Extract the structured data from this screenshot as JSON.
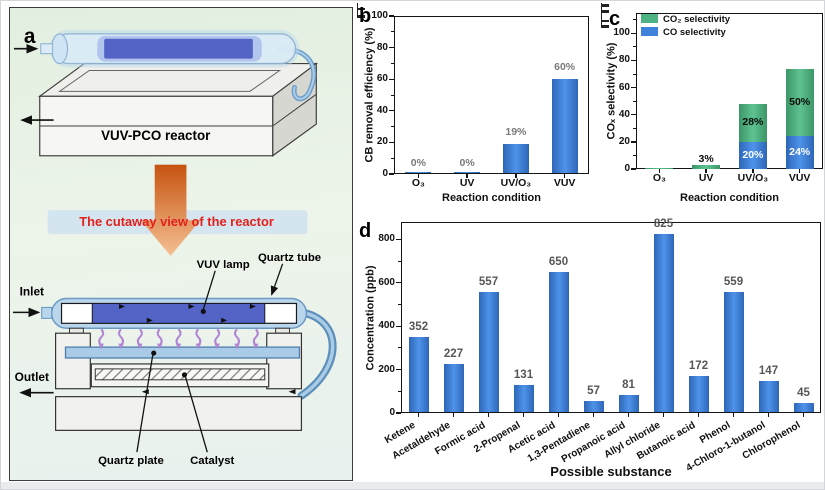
{
  "figure": {
    "panel_a": {
      "label": "a",
      "reactor_title": "VUV-PCO reactor",
      "caption": "The cutaway view of the reactor",
      "inlet": "Inlet",
      "outlet": "Outlet",
      "vuv_lamp": "VUV lamp",
      "quartz_tube": "Quartz tube",
      "quartz_plate": "Quartz plate",
      "catalyst": "Catalyst",
      "caption_color": "#e3211c"
    }
  },
  "chart_data": [
    {
      "id": "b",
      "type": "bar",
      "panel_label": "b",
      "ylabel": "CB removal efficiency (%)",
      "xlabel": "Reaction condition",
      "categories": [
        "O₃",
        "UV",
        "UV/O₃",
        "VUV"
      ],
      "values": [
        0.5,
        0.5,
        19,
        60
      ],
      "errors": [
        0,
        0,
        1.5,
        1.5
      ],
      "bar_labels": [
        "0%",
        "0%",
        "19%",
        "60%"
      ],
      "yticks": [
        0,
        20,
        40,
        60,
        80,
        100
      ],
      "ylim": [
        0,
        100
      ],
      "grid": false,
      "legend_position": "none",
      "bar_color_dark": "#2d66b8",
      "bar_color_light": "#4e93ea",
      "bar_label_color": "#7a7a7a"
    },
    {
      "id": "c",
      "type": "stacked-bar",
      "panel_label": "c",
      "ylabel": "COₓ selectivity (%)",
      "xlabel": "Reaction condition",
      "categories": [
        "O₃",
        "UV",
        "UV/O₃",
        "VUV"
      ],
      "series": [
        {
          "name": "CO selectivity",
          "values": [
            0,
            0,
            20,
            24
          ],
          "labels": [
            "",
            "",
            "20%",
            "24%"
          ],
          "errors": [
            0,
            0,
            1.2,
            0
          ],
          "color_dark": "#2d66b8",
          "color_light": "#4e93ea",
          "label_color": "#ffffff"
        },
        {
          "name": "CO₂ selectivity",
          "values": [
            0.5,
            3,
            28,
            50
          ],
          "labels": [
            "",
            "3%",
            "28%",
            "50%"
          ],
          "errors": [
            0,
            0.5,
            2.5,
            1.2
          ],
          "color_dark": "#3c9668",
          "color_light": "#5fc291",
          "label_color": "#0a0a0a"
        }
      ],
      "legend": [
        {
          "label": "CO₂ selectivity",
          "color": "#4db284"
        },
        {
          "label": "CO selectivity",
          "color": "#3f82dc"
        }
      ],
      "legend_position": "upper-left",
      "yticks": [
        0,
        20,
        40,
        60,
        80,
        100
      ],
      "ylim": [
        0,
        115
      ],
      "grid": false
    },
    {
      "id": "d",
      "type": "bar",
      "panel_label": "d",
      "ylabel": "Concentration (ppb)",
      "xlabel": "Possible substance",
      "categories": [
        "Ketene",
        "Acetaldehyde",
        "Formic acid",
        "2-Propenal",
        "Acetic acid",
        "1,3-Pentadiene",
        "Propanoic acid",
        "Allyl chloride",
        "Butanoic acid",
        "Phenol",
        "4-Chloro-1-butanol",
        "Chlorophenol"
      ],
      "values": [
        352,
        227,
        557,
        131,
        650,
        57,
        81,
        825,
        172,
        559,
        147,
        45
      ],
      "errors": [
        0,
        0,
        0,
        0,
        0,
        0,
        0,
        0,
        0,
        0,
        0,
        0
      ],
      "bar_labels": [
        "352",
        "227",
        "557",
        "131",
        "650",
        "57",
        "81",
        "825",
        "172",
        "559",
        "147",
        "45"
      ],
      "yticks": [
        0,
        200,
        400,
        600,
        800
      ],
      "ylim": [
        0,
        880
      ],
      "grid": false,
      "legend_position": "none",
      "bar_color_dark": "#2d66b8",
      "bar_color_light": "#4e93ea",
      "bar_label_color": "#575757"
    }
  ]
}
